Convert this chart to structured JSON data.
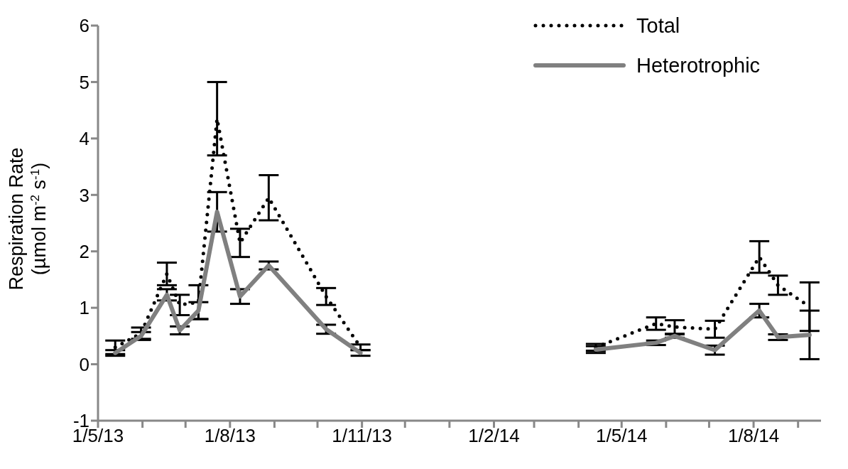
{
  "chart_data": {
    "type": "line",
    "ylabel": "Respiration Rate\n(µmol m$^{-2}$ s$^{-1}$)",
    "x": [
      "2013-05-13",
      "2013-05-31",
      "2013-06-18",
      "2013-06-27",
      "2013-07-10",
      "2013-07-23",
      "2013-08-08",
      "2013-08-28",
      "2013-10-07",
      "2013-10-31",
      "2014-01-01",
      "2014-04-13",
      "2014-05-25",
      "2014-06-07",
      "2014-07-05",
      "2014-08-05",
      "2014-08-18",
      "2014-09-09"
    ],
    "series": [
      {
        "name": "Total",
        "color": "#000000",
        "line_style": "dotted",
        "values": [
          0.3,
          0.55,
          1.6,
          1.05,
          1.1,
          4.35,
          2.15,
          2.95,
          1.2,
          0.3,
          null,
          0.3,
          0.72,
          0.66,
          0.62,
          1.9,
          1.4,
          1.02
        ],
        "errors": [
          0.12,
          0.1,
          0.2,
          0.18,
          0.3,
          0.65,
          0.25,
          0.4,
          0.15,
          0.05,
          null,
          0.06,
          0.11,
          0.12,
          0.15,
          0.28,
          0.17,
          0.43
        ]
      },
      {
        "name": "Heterotrophic",
        "color": "#808080",
        "line_style": "solid",
        "values": [
          0.2,
          0.5,
          1.23,
          0.6,
          0.95,
          2.7,
          1.2,
          1.75,
          0.62,
          0.2,
          null,
          0.26,
          0.38,
          0.5,
          0.25,
          0.95,
          0.48,
          0.52
        ],
        "errors": [
          0.05,
          0.07,
          0.1,
          0.07,
          0.15,
          0.35,
          0.13,
          0.07,
          0.08,
          0.05,
          null,
          0.06,
          0.04,
          0.03,
          0.08,
          0.12,
          0.05,
          0.43
        ]
      }
    ],
    "xlim": [
      "2013-05-01",
      "2014-09-17"
    ],
    "xticks": [
      {
        "value": "2013-05-01",
        "label": "1/5/13"
      },
      {
        "value": "2013-06-01",
        "label": null
      },
      {
        "value": "2013-07-01",
        "label": null
      },
      {
        "value": "2013-08-01",
        "label": "1/8/13"
      },
      {
        "value": "2013-09-01",
        "label": null
      },
      {
        "value": "2013-10-01",
        "label": null
      },
      {
        "value": "2013-11-01",
        "label": "1/11/13"
      },
      {
        "value": "2013-12-01",
        "label": null
      },
      {
        "value": "2014-01-01",
        "label": null
      },
      {
        "value": "2014-02-01",
        "label": "1/2/14"
      },
      {
        "value": "2014-03-01",
        "label": null
      },
      {
        "value": "2014-04-01",
        "label": null
      },
      {
        "value": "2014-05-01",
        "label": "1/5/14"
      },
      {
        "value": "2014-06-01",
        "label": null
      },
      {
        "value": "2014-07-01",
        "label": null
      },
      {
        "value": "2014-08-01",
        "label": "1/8/14"
      },
      {
        "value": "2014-09-01",
        "label": null
      }
    ],
    "ylim": [
      -1,
      6
    ],
    "yticks": [
      -1,
      0,
      1,
      2,
      3,
      4,
      5,
      6
    ],
    "grid": false,
    "legend": "top right"
  }
}
